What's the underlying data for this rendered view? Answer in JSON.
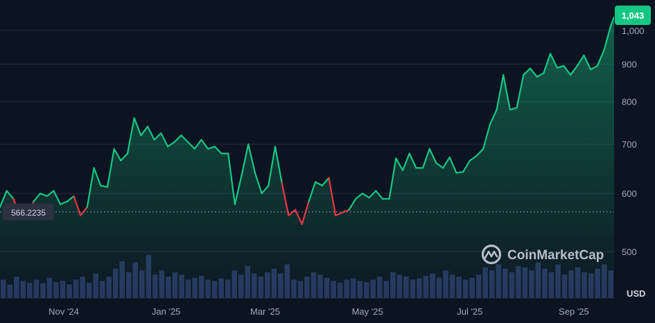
{
  "chart_data": {
    "type": "area",
    "currency": "USD",
    "watermark": "CoinMarketCap",
    "current_value": 1043,
    "current_value_label": "1,043",
    "reference_value": 566.2235,
    "reference_label": "566.2235",
    "y_scale": "log",
    "ylim": [
      440,
      1060
    ],
    "x_range": [
      "2024-09-24",
      "2025-09-25"
    ],
    "y_ticks": [
      {
        "value": 500,
        "label": "500"
      },
      {
        "value": 600,
        "label": "600"
      },
      {
        "value": 700,
        "label": "700"
      },
      {
        "value": 800,
        "label": "800"
      },
      {
        "value": 900,
        "label": "900"
      },
      {
        "value": 1000,
        "label": "1,000"
      }
    ],
    "x_ticks": [
      {
        "date": "2024-11-01",
        "label": "Nov '24"
      },
      {
        "date": "2025-01-01",
        "label": "Jan '25"
      },
      {
        "date": "2025-03-01",
        "label": "Mar '25"
      },
      {
        "date": "2025-05-01",
        "label": "May '25"
      },
      {
        "date": "2025-07-01",
        "label": "Jul '25"
      },
      {
        "date": "2025-09-01",
        "label": "Sep '25"
      }
    ],
    "colors": {
      "up": "#16c784",
      "down": "#ea3943"
    },
    "series": [
      {
        "x": [
          "2024-09-24",
          "2024-09-28",
          "2024-10-02",
          "2024-10-06",
          "2024-10-10",
          "2024-10-14",
          "2024-10-18",
          "2024-10-22",
          "2024-10-26",
          "2024-10-30",
          "2024-11-03",
          "2024-11-07",
          "2024-11-11",
          "2024-11-15",
          "2024-11-19",
          "2024-11-23",
          "2024-11-27",
          "2024-12-01",
          "2024-12-05",
          "2024-12-09",
          "2024-12-13",
          "2024-12-17",
          "2024-12-21",
          "2024-12-25",
          "2024-12-29",
          "2025-01-02",
          "2025-01-06",
          "2025-01-10",
          "2025-01-14",
          "2025-01-18",
          "2025-01-22",
          "2025-01-26",
          "2025-01-30",
          "2025-02-03",
          "2025-02-07",
          "2025-02-11",
          "2025-02-15",
          "2025-02-19",
          "2025-02-23",
          "2025-02-27",
          "2025-03-03",
          "2025-03-07",
          "2025-03-11",
          "2025-03-15",
          "2025-03-19",
          "2025-03-23",
          "2025-03-27",
          "2025-03-31",
          "2025-04-04",
          "2025-04-08",
          "2025-04-12",
          "2025-04-16",
          "2025-04-20",
          "2025-04-24",
          "2025-04-28",
          "2025-05-02",
          "2025-05-06",
          "2025-05-10",
          "2025-05-14",
          "2025-05-18",
          "2025-05-22",
          "2025-05-26",
          "2025-05-30",
          "2025-06-03",
          "2025-06-07",
          "2025-06-11",
          "2025-06-15",
          "2025-06-19",
          "2025-06-23",
          "2025-06-27",
          "2025-07-01",
          "2025-07-05",
          "2025-07-09",
          "2025-07-13",
          "2025-07-17",
          "2025-07-21",
          "2025-07-25",
          "2025-07-29",
          "2025-08-02",
          "2025-08-06",
          "2025-08-10",
          "2025-08-14",
          "2025-08-18",
          "2025-08-22",
          "2025-08-26",
          "2025-08-30",
          "2025-09-03",
          "2025-09-07",
          "2025-09-11",
          "2025-09-15",
          "2025-09-19",
          "2025-09-23",
          "2025-09-25"
        ],
        "values": [
          575,
          605,
          590,
          560,
          558,
          585,
          600,
          595,
          605,
          580,
          585,
          595,
          560,
          575,
          650,
          615,
          612,
          690,
          665,
          680,
          760,
          720,
          740,
          710,
          725,
          695,
          705,
          720,
          705,
          690,
          710,
          690,
          695,
          680,
          680,
          580,
          635,
          700,
          640,
          600,
          615,
          695,
          620,
          560,
          570,
          545,
          585,
          622,
          615,
          630,
          560,
          565,
          570,
          590,
          600,
          592,
          605,
          590,
          590,
          670,
          645,
          680,
          650,
          650,
          690,
          660,
          650,
          672,
          640,
          642,
          665,
          675,
          690,
          745,
          780,
          870,
          780,
          785,
          870,
          888,
          865,
          875,
          930,
          890,
          895,
          870,
          895,
          925,
          885,
          895,
          940,
          1015,
          1043
        ]
      }
    ],
    "volume": [
      30,
      22,
      35,
      28,
      25,
      30,
      24,
      33,
      26,
      28,
      22,
      30,
      35,
      25,
      40,
      28,
      35,
      48,
      60,
      42,
      58,
      45,
      70,
      38,
      45,
      35,
      42,
      38,
      30,
      33,
      36,
      30,
      28,
      32,
      30,
      45,
      38,
      52,
      40,
      35,
      42,
      48,
      40,
      55,
      30,
      28,
      35,
      42,
      38,
      33,
      28,
      25,
      30,
      32,
      28,
      26,
      30,
      35,
      28,
      42,
      38,
      35,
      30,
      32,
      36,
      40,
      33,
      45,
      38,
      35,
      30,
      33,
      38,
      50,
      45,
      55,
      48,
      42,
      52,
      50,
      45,
      58,
      48,
      42,
      55,
      38,
      45,
      50,
      42,
      40,
      48,
      55,
      45
    ]
  }
}
